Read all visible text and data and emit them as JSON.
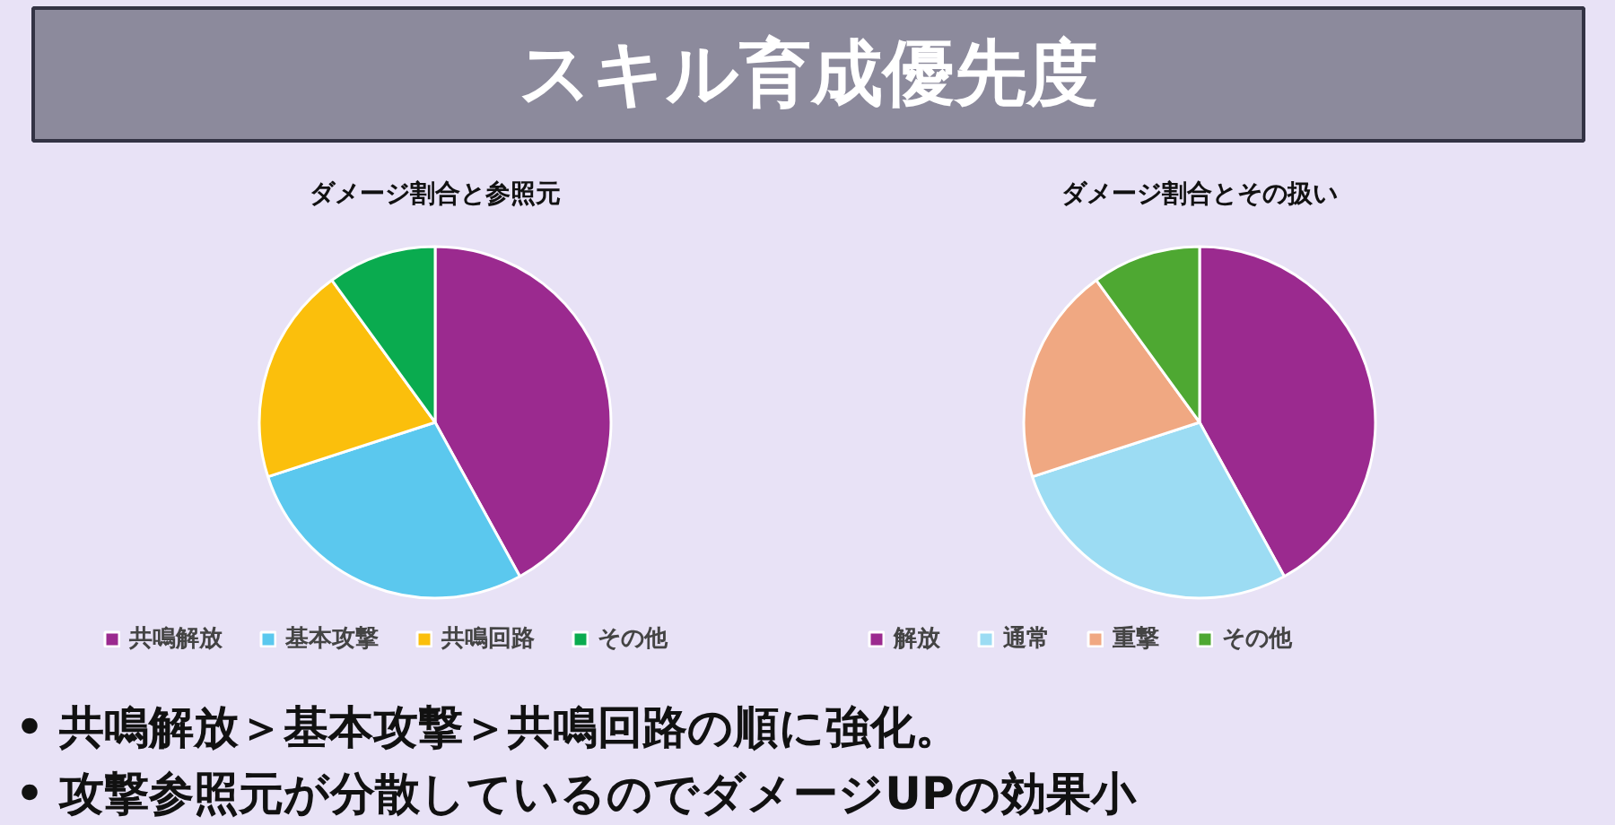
{
  "chart_data": [
    {
      "type": "other",
      "title": "スキル育成優先度"
    },
    {
      "type": "pie",
      "title": "ダメージ割合と参照元",
      "categories": [
        "共鳴解放",
        "基本攻撃",
        "共鳴回路",
        "その他"
      ],
      "values": [
        42,
        28,
        20,
        10
      ],
      "colors": [
        "#9b2a8f",
        "#5bc8ee",
        "#fbbf0c",
        "#0aab4f"
      ],
      "legend": "bottom"
    },
    {
      "type": "pie",
      "title": "ダメージ割合とその扱い",
      "categories": [
        "解放",
        "通常",
        "重撃",
        "その他"
      ],
      "values": [
        42,
        28,
        20,
        10
      ],
      "colors": [
        "#9b2a8f",
        "#9cdcf3",
        "#f0a882",
        "#4ea832"
      ],
      "legend": "bottom"
    },
    {
      "type": "other",
      "annotations": [
        "• 共鳴解放＞基本攻撃＞共鳴回路の順に強化。",
        "• 攻撃参照元が分散しているのでダメージUPの効果小"
      ]
    }
  ]
}
